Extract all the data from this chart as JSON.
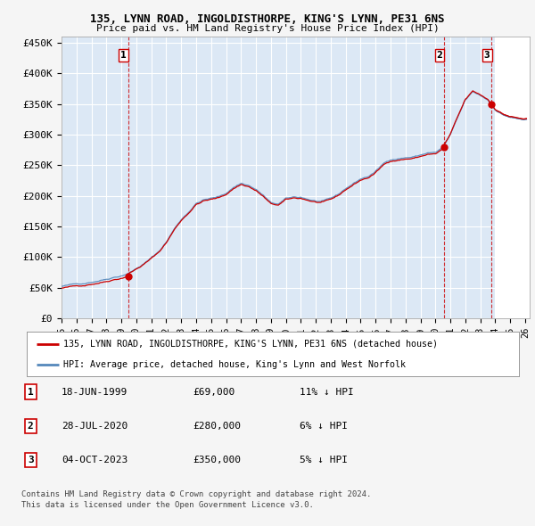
{
  "title1": "135, LYNN ROAD, INGOLDISTHORPE, KING'S LYNN, PE31 6NS",
  "title2": "Price paid vs. HM Land Registry's House Price Index (HPI)",
  "legend_line1": "135, LYNN ROAD, INGOLDISTHORPE, KING'S LYNN, PE31 6NS (detached house)",
  "legend_line2": "HPI: Average price, detached house, King's Lynn and West Norfolk",
  "footer1": "Contains HM Land Registry data © Crown copyright and database right 2024.",
  "footer2": "This data is licensed under the Open Government Licence v3.0.",
  "transactions": [
    {
      "num": 1,
      "date": "18-JUN-1999",
      "price": "£69,000",
      "change": "11% ↓ HPI"
    },
    {
      "num": 2,
      "date": "28-JUL-2020",
      "price": "£280,000",
      "change": "6% ↓ HPI"
    },
    {
      "num": 3,
      "date": "04-OCT-2023",
      "price": "£350,000",
      "change": "5% ↓ HPI"
    }
  ],
  "sale_years": [
    1999.46,
    2020.57,
    2023.75
  ],
  "sale_prices": [
    69000,
    280000,
    350000
  ],
  "background_color": "#f0f4fa",
  "plot_bg_color": "#dce8f5",
  "grid_color": "#ffffff",
  "red_line_color": "#cc0000",
  "blue_line_color": "#5588bb",
  "ylim": [
    0,
    460000
  ],
  "xlim_start": 1995.0,
  "xlim_end": 2026.3,
  "ytick_vals": [
    0,
    50000,
    100000,
    150000,
    200000,
    250000,
    300000,
    350000,
    400000,
    450000
  ],
  "ytick_labels": [
    "£0",
    "£50K",
    "£100K",
    "£150K",
    "£200K",
    "£250K",
    "£300K",
    "£350K",
    "£400K",
    "£450K"
  ],
  "xtick_vals": [
    1995,
    1996,
    1997,
    1998,
    1999,
    2000,
    2001,
    2002,
    2003,
    2004,
    2005,
    2006,
    2007,
    2008,
    2009,
    2010,
    2011,
    2012,
    2013,
    2014,
    2015,
    2016,
    2017,
    2018,
    2019,
    2020,
    2021,
    2022,
    2023,
    2024,
    2025,
    2026
  ],
  "xtick_labels": [
    "95",
    "96",
    "97",
    "98",
    "99",
    "00",
    "01",
    "02",
    "03",
    "04",
    "05",
    "06",
    "07",
    "08",
    "09",
    "10",
    "11",
    "12",
    "13",
    "14",
    "15",
    "16",
    "17",
    "18",
    "19",
    "20",
    "21",
    "22",
    "23",
    "24",
    "25",
    "26"
  ],
  "hatch_start": 2024.0,
  "vline_color": "#cc0000"
}
